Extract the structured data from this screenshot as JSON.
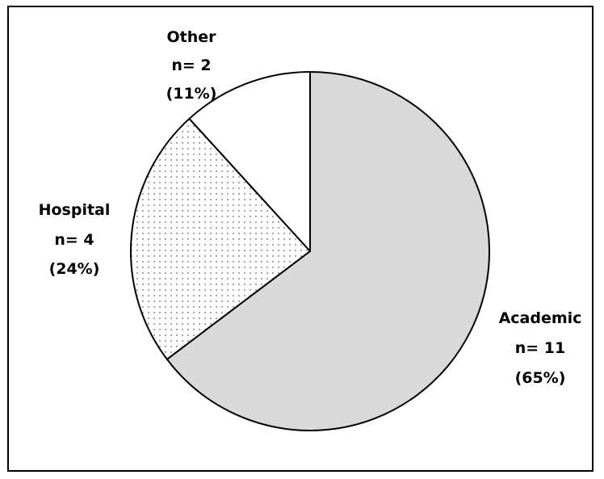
{
  "chart_data": {
    "type": "pie",
    "slices": [
      {
        "name": "Academic",
        "n": 11,
        "percent": 65,
        "n_label": "n= 11",
        "pct_label": "(65%)",
        "fill": "#d9d9d9",
        "pattern": "solid"
      },
      {
        "name": "Hospital",
        "n": 4,
        "percent": 24,
        "n_label": "n= 4",
        "pct_label": "(24%)",
        "fill": "#ffffff",
        "pattern": "dotted"
      },
      {
        "name": "Other",
        "n": 2,
        "percent": 11,
        "n_label": "n= 2",
        "pct_label": "(11%)",
        "fill": "#ffffff",
        "pattern": "solid"
      }
    ],
    "start_angle": "12 o'clock",
    "direction": "clockwise",
    "legend": "none",
    "colors": {
      "outline": "#000000",
      "academic_fill": "#d9d9d9",
      "hospital_dot": "#666666"
    }
  }
}
